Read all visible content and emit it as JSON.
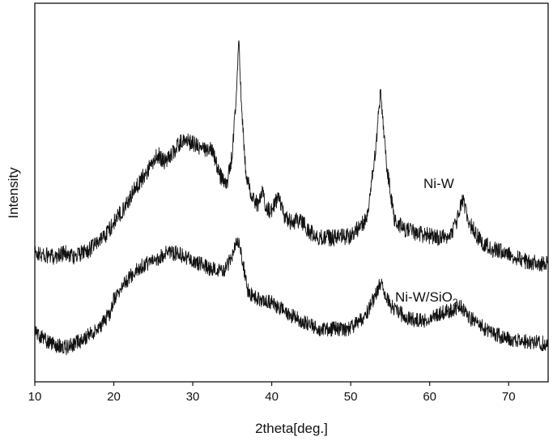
{
  "chart_data": {
    "type": "line",
    "xlabel": "2theta[deg.]",
    "ylabel": "Intensity",
    "xlim": [
      10,
      75
    ],
    "ylim": [
      0,
      100
    ],
    "x_ticks": [
      10,
      20,
      30,
      40,
      50,
      60,
      70
    ],
    "y_ticks_shown": false,
    "grid": false,
    "series": [
      {
        "name": "Ni-W",
        "label_main": "Ni-W",
        "label_sub": "",
        "noise": 2.2,
        "points": [
          [
            10,
            34
          ],
          [
            12,
            33
          ],
          [
            14,
            34
          ],
          [
            15,
            33
          ],
          [
            17,
            35
          ],
          [
            19,
            39
          ],
          [
            21,
            45
          ],
          [
            23,
            52
          ],
          [
            25,
            58
          ],
          [
            25.6,
            60
          ],
          [
            26.5,
            58
          ],
          [
            28,
            62
          ],
          [
            28.8,
            64
          ],
          [
            30,
            63
          ],
          [
            31.5,
            61
          ],
          [
            32.5,
            62
          ],
          [
            33.3,
            55
          ],
          [
            34.3,
            52
          ],
          [
            35,
            60
          ],
          [
            35.5,
            75
          ],
          [
            35.8,
            91
          ],
          [
            36.1,
            76
          ],
          [
            36.7,
            56
          ],
          [
            37.5,
            48
          ],
          [
            38.3,
            47
          ],
          [
            38.8,
            50
          ],
          [
            39.3,
            46
          ],
          [
            40,
            45
          ],
          [
            40.8,
            49
          ],
          [
            41.5,
            44
          ],
          [
            42.5,
            42
          ],
          [
            43.7,
            43
          ],
          [
            44.5,
            40
          ],
          [
            46,
            38
          ],
          [
            48,
            38
          ],
          [
            50,
            38.5
          ],
          [
            52,
            43
          ],
          [
            53,
            58
          ],
          [
            53.8,
            77
          ],
          [
            54.5,
            58
          ],
          [
            55.5,
            43
          ],
          [
            57,
            40
          ],
          [
            59,
            39
          ],
          [
            61,
            38
          ],
          [
            62.5,
            38
          ],
          [
            63.5,
            43
          ],
          [
            64.2,
            48
          ],
          [
            65,
            42
          ],
          [
            66.5,
            37
          ],
          [
            68,
            35
          ],
          [
            70,
            34
          ],
          [
            72,
            32
          ],
          [
            75,
            31
          ]
        ]
      },
      {
        "name": "Ni-W/SiO2",
        "label_main": "Ni-W/SiO",
        "label_sub": "2",
        "noise": 2.0,
        "points": [
          [
            10,
            13
          ],
          [
            12,
            10
          ],
          [
            14,
            9
          ],
          [
            16,
            11
          ],
          [
            18,
            14
          ],
          [
            19.5,
            18
          ],
          [
            20,
            22
          ],
          [
            21,
            25
          ],
          [
            23,
            30
          ],
          [
            25,
            32
          ],
          [
            26.7,
            34
          ],
          [
            28,
            34
          ],
          [
            30,
            32
          ],
          [
            32,
            30
          ],
          [
            34,
            29
          ],
          [
            35.1,
            34
          ],
          [
            35.6,
            38
          ],
          [
            36.2,
            33
          ],
          [
            37,
            24
          ],
          [
            38,
            22
          ],
          [
            40,
            21
          ],
          [
            42,
            18
          ],
          [
            44,
            16
          ],
          [
            46,
            14
          ],
          [
            48,
            14
          ],
          [
            50,
            14
          ],
          [
            52,
            18
          ],
          [
            53.8,
            26
          ],
          [
            55,
            20
          ],
          [
            57,
            17
          ],
          [
            59,
            16
          ],
          [
            61,
            18
          ],
          [
            63,
            19
          ],
          [
            64,
            20
          ],
          [
            65,
            17
          ],
          [
            67,
            14
          ],
          [
            69,
            12
          ],
          [
            71,
            11
          ],
          [
            75,
            10
          ]
        ]
      }
    ]
  }
}
